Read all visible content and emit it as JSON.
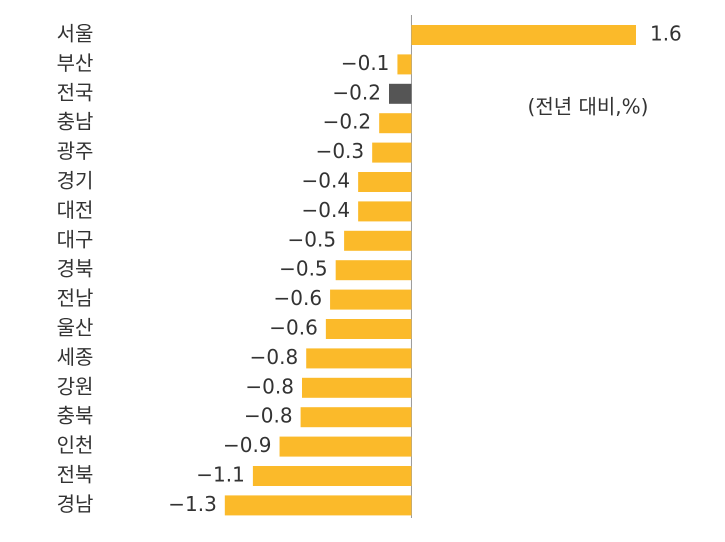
{
  "chart_data": {
    "type": "hbar",
    "annotation": "(전년 대비,%)",
    "categories": [
      "서울",
      "부산",
      "전국",
      "충남",
      "광주",
      "경기",
      "대전",
      "대구",
      "경북",
      "전남",
      "울산",
      "세종",
      "강원",
      "충북",
      "인천",
      "전북",
      "경남"
    ],
    "values": [
      1.6,
      -0.1,
      -0.16,
      -0.23,
      -0.28,
      -0.38,
      -0.38,
      -0.48,
      -0.54,
      -0.58,
      -0.61,
      -0.75,
      -0.78,
      -0.79,
      -0.94,
      -1.13,
      -1.33
    ],
    "value_labels": [
      "1.6",
      "−0.1",
      "−0.2",
      "−0.2",
      "−0.3",
      "−0.4",
      "−0.4",
      "−0.5",
      "−0.5",
      "−0.6",
      "−0.6",
      "−0.8",
      "−0.8",
      "−0.8",
      "−0.9",
      "−1.1",
      "−1.3"
    ],
    "colors": [
      "#fbba2a",
      "#fbba2a",
      "#555555",
      "#fbba2a",
      "#fbba2a",
      "#fbba2a",
      "#fbba2a",
      "#fbba2a",
      "#fbba2a",
      "#fbba2a",
      "#fbba2a",
      "#fbba2a",
      "#fbba2a",
      "#fbba2a",
      "#fbba2a",
      "#fbba2a",
      "#fbba2a"
    ],
    "xlim": [
      -1.4,
      1.65
    ]
  }
}
